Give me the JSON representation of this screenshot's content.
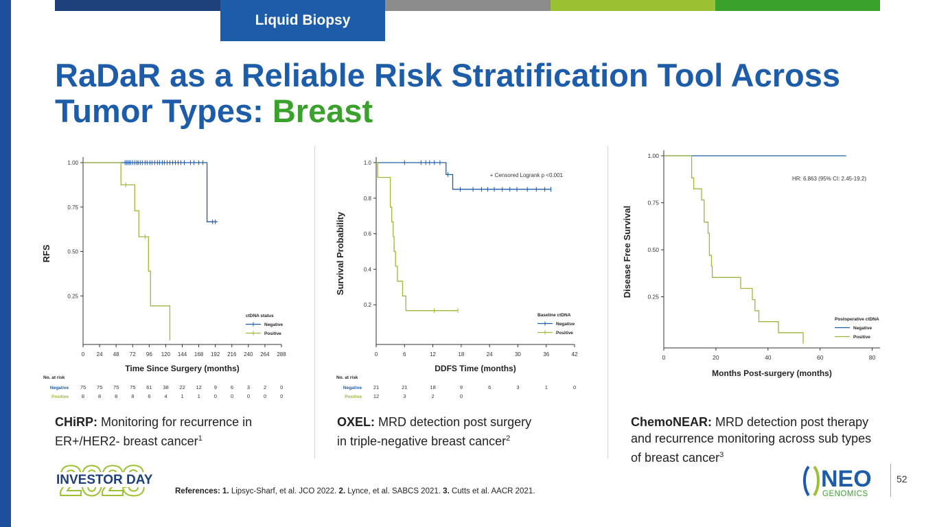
{
  "header": {
    "tab_label": "Liquid Biopsy",
    "bar_colors": [
      "#1d3f7a",
      "#1d5ca8",
      "#8c8c8c",
      "#9bc132",
      "#3aa12c"
    ]
  },
  "title": {
    "line1": "RaDaR as a Reliable Risk Stratification Tool Across",
    "line2_prefix": "Tumor Types: ",
    "line2_accent": "Breast"
  },
  "colors": {
    "negative": "#1d5ca8",
    "positive": "#9bb83a",
    "title": "#1d5ca8",
    "accent": "#3aa12c"
  },
  "chart_data": [
    {
      "type": "line",
      "subtype": "kaplan-meier",
      "xlabel": "Time Since Surgery (months)",
      "ylabel": "RFS",
      "xlim": [
        0,
        288
      ],
      "xticks": [
        "0",
        "24",
        "48",
        "72",
        "96",
        "120",
        "144",
        "168",
        "192",
        "216",
        "240",
        "264",
        "288"
      ],
      "yticks": [
        "1.00",
        "0.75",
        "0.50",
        "0.25"
      ],
      "ytick_values": [
        1.0,
        0.75,
        0.5,
        0.25
      ],
      "legend_title": "ctDNA status",
      "series": [
        {
          "name": "Negative",
          "color": "#1d5ca8",
          "steps": [
            [
              0,
              1.0
            ],
            [
              180,
              1.0
            ],
            [
              180,
              0.667
            ],
            [
              195,
              0.667
            ]
          ],
          "censor": [
            [
              61,
              1.0
            ],
            [
              63,
              1.0
            ],
            [
              65,
              1.0
            ],
            [
              67,
              1.0
            ],
            [
              69,
              1.0
            ],
            [
              72,
              1.0
            ],
            [
              75,
              1.0
            ],
            [
              78,
              1.0
            ],
            [
              80,
              1.0
            ],
            [
              83,
              1.0
            ],
            [
              86,
              1.0
            ],
            [
              90,
              1.0
            ],
            [
              93,
              1.0
            ],
            [
              97,
              1.0
            ],
            [
              100,
              1.0
            ],
            [
              104,
              1.0
            ],
            [
              108,
              1.0
            ],
            [
              111,
              1.0
            ],
            [
              115,
              1.0
            ],
            [
              118,
              1.0
            ],
            [
              122,
              1.0
            ],
            [
              126,
              1.0
            ],
            [
              130,
              1.0
            ],
            [
              134,
              1.0
            ],
            [
              138,
              1.0
            ],
            [
              142,
              1.0
            ],
            [
              147,
              1.0
            ],
            [
              156,
              1.0
            ],
            [
              161,
              1.0
            ],
            [
              168,
              1.0
            ],
            [
              174,
              1.0
            ],
            [
              188,
              0.667
            ],
            [
              192,
              0.667
            ]
          ]
        },
        {
          "name": "Positive",
          "color": "#9bb83a",
          "steps": [
            [
              0,
              1.0
            ],
            [
              55,
              1.0
            ],
            [
              55,
              0.875
            ],
            [
              75,
              0.875
            ],
            [
              75,
              0.729
            ],
            [
              81,
              0.729
            ],
            [
              81,
              0.583
            ],
            [
              95,
              0.583
            ],
            [
              95,
              0.389
            ],
            [
              98,
              0.389
            ],
            [
              98,
              0.194
            ],
            [
              126,
              0.194
            ],
            [
              126,
              0.0
            ]
          ],
          "censor": [
            [
              62,
              0.875
            ],
            [
              90,
              0.583
            ]
          ]
        }
      ],
      "risk_table": {
        "title": "No. at risk",
        "rows": [
          {
            "label": "Negative",
            "values": [
              "75",
              "75",
              "75",
              "75",
              "61",
              "38",
              "22",
              "12",
              "9",
              "6",
              "3",
              "2",
              "0"
            ]
          },
          {
            "label": "Positive",
            "values": [
              "8",
              "8",
              "8",
              "8",
              "6",
              "4",
              "1",
              "1",
              "0",
              "0",
              "0",
              "0",
              "0"
            ]
          }
        ]
      }
    },
    {
      "type": "line",
      "subtype": "kaplan-meier",
      "xlabel": "DDFS Time (months)",
      "ylabel": "Survival Probability",
      "xlim": [
        0,
        42
      ],
      "ylim": [
        0,
        1.0
      ],
      "xticks": [
        "0",
        "6",
        "12",
        "18",
        "24",
        "30",
        "36",
        "42"
      ],
      "yticks": [
        "1.0",
        "0.8",
        "0.6",
        "0.4",
        "0.2"
      ],
      "ytick_values": [
        1.0,
        0.8,
        0.6,
        0.4,
        0.2
      ],
      "annotation": "+ Censored Logrank p <0.001",
      "legend_title": "Baseline ctDNA",
      "series": [
        {
          "name": "Negative",
          "color": "#1d5ca8",
          "steps": [
            [
              0,
              1.0
            ],
            [
              14.8,
              1.0
            ],
            [
              14.8,
              0.933
            ],
            [
              16.2,
              0.933
            ],
            [
              16.2,
              0.85
            ],
            [
              37,
              0.85
            ]
          ],
          "censor": [
            [
              6,
              1.0
            ],
            [
              9.5,
              1.0
            ],
            [
              10.5,
              1.0
            ],
            [
              11.3,
              1.0
            ],
            [
              12.3,
              1.0
            ],
            [
              13.5,
              1.0
            ],
            [
              15.2,
              0.933
            ],
            [
              17.8,
              0.85
            ],
            [
              20.5,
              0.85
            ],
            [
              22.3,
              0.85
            ],
            [
              23.6,
              0.85
            ],
            [
              25,
              0.85
            ],
            [
              26.7,
              0.85
            ],
            [
              28.3,
              0.85
            ],
            [
              29.8,
              0.85
            ],
            [
              32,
              0.85
            ],
            [
              33.9,
              0.85
            ],
            [
              35.7,
              0.85
            ],
            [
              37,
              0.85
            ]
          ]
        },
        {
          "name": "Positive",
          "color": "#9bb83a",
          "steps": [
            [
              0,
              1.0
            ],
            [
              0.3,
              1.0
            ],
            [
              0.3,
              0.917
            ],
            [
              3.0,
              0.917
            ],
            [
              3.0,
              0.75
            ],
            [
              3.3,
              0.75
            ],
            [
              3.3,
              0.667
            ],
            [
              3.6,
              0.667
            ],
            [
              3.6,
              0.583
            ],
            [
              3.8,
              0.583
            ],
            [
              3.8,
              0.5
            ],
            [
              4.1,
              0.5
            ],
            [
              4.1,
              0.417
            ],
            [
              4.5,
              0.417
            ],
            [
              4.5,
              0.333
            ],
            [
              5.6,
              0.333
            ],
            [
              5.6,
              0.25
            ],
            [
              6.3,
              0.25
            ],
            [
              6.3,
              0.167
            ],
            [
              17.3,
              0.167
            ]
          ],
          "censor": [
            [
              12.3,
              0.167
            ],
            [
              17.3,
              0.167
            ]
          ]
        }
      ],
      "risk_table": {
        "title": "No. at risk",
        "rows": [
          {
            "label": "Negative",
            "values": [
              "21",
              "21",
              "18",
              "9",
              "6",
              "3",
              "1",
              "0"
            ]
          },
          {
            "label": "Positive",
            "values": [
              "12",
              "3",
              "2",
              "0",
              "",
              "",
              "",
              ""
            ]
          }
        ]
      }
    },
    {
      "type": "line",
      "subtype": "kaplan-meier",
      "xlabel": "Months Post-surgery (months)",
      "ylabel": "Disease Free Survival",
      "xlim": [
        0,
        83
      ],
      "ylim": [
        0,
        1.0
      ],
      "xticks": [
        "0",
        "20",
        "40",
        "60",
        "80"
      ],
      "xtick_values": [
        0,
        20,
        40,
        60,
        80
      ],
      "yticks": [
        "1.00",
        "0.75",
        "0.50",
        "0.25"
      ],
      "ytick_values": [
        1.0,
        0.75,
        0.5,
        0.25
      ],
      "annotation": "HR: 6.863 (95% CI: 2.45-19.2)",
      "legend_title": "Postoperative ctDNA",
      "series": [
        {
          "name": "Negative",
          "color": "#1d5ca8",
          "steps": [
            [
              0,
              1.0
            ],
            [
              70,
              1.0
            ]
          ],
          "censor": []
        },
        {
          "name": "Positive",
          "color": "#9bb83a",
          "steps": [
            [
              0,
              1.0
            ],
            [
              10.7,
              1.0
            ],
            [
              10.7,
              0.882
            ],
            [
              11.5,
              0.882
            ],
            [
              11.5,
              0.824
            ],
            [
              14.5,
              0.824
            ],
            [
              14.5,
              0.765
            ],
            [
              15.5,
              0.765
            ],
            [
              15.5,
              0.647
            ],
            [
              17,
              0.647
            ],
            [
              17,
              0.588
            ],
            [
              17.5,
              0.588
            ],
            [
              17.5,
              0.47
            ],
            [
              18.3,
              0.47
            ],
            [
              18.3,
              0.412
            ],
            [
              18.6,
              0.412
            ],
            [
              18.6,
              0.353
            ],
            [
              29.5,
              0.353
            ],
            [
              29.5,
              0.294
            ],
            [
              34,
              0.294
            ],
            [
              34,
              0.235
            ],
            [
              35,
              0.235
            ],
            [
              35,
              0.176
            ],
            [
              36.5,
              0.176
            ],
            [
              36.5,
              0.118
            ],
            [
              44,
              0.118
            ],
            [
              44,
              0.059
            ],
            [
              53.5,
              0.059
            ],
            [
              53.5,
              0.0
            ]
          ],
          "censor": []
        }
      ]
    }
  ],
  "captions": [
    {
      "bold": "CHiRP:",
      "text": "Monitoring for recurrence in",
      "line2": "ER+/HER2- breast cancer",
      "sup": "1"
    },
    {
      "bold": "OXEL:",
      "text": "MRD detection post surgery",
      "line2": "in triple-negative breast cancer",
      "sup": "2"
    },
    {
      "bold": "ChemoNEAR:",
      "text": "MRD detection post therapy",
      "line2": "and recurrence monitoring across sub types",
      "line3": "of breast cancer",
      "sup": "3"
    }
  ],
  "footer": {
    "references_label": "References:",
    "refs": [
      {
        "num": "1.",
        "text": " Lipsyc-Sharf, et al. JCO 2022. "
      },
      {
        "num": "2.",
        "text": " Lynce, et al. SABCS 2021. "
      },
      {
        "num": "3.",
        "text": " Cutts et al. AACR 2021."
      }
    ],
    "event_year": "2023",
    "event_name": "INVESTOR DAY",
    "company_logo": "NEO",
    "company_sub": "GENOMICS",
    "page_number": "52"
  }
}
